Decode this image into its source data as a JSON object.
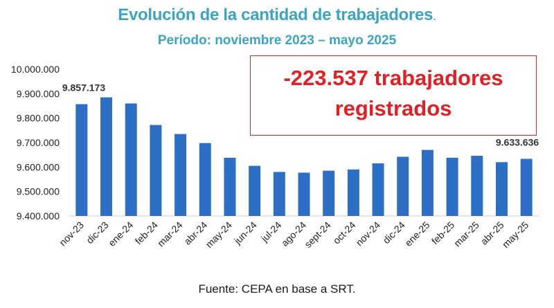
{
  "chart_data": {
    "type": "bar",
    "title": "Evolución de la cantidad de trabajadores",
    "title_suffix": ".",
    "subtitle": "Período: noviembre 2023 – mayo 2025",
    "categories": [
      "nov-23",
      "dic-23",
      "ene-24",
      "feb-24",
      "mar-24",
      "abr-24",
      "may-24",
      "jun-24",
      "jul-24",
      "ago-24",
      "sept-24",
      "oct-24",
      "nov-24",
      "dic-24",
      "ene-25",
      "feb-25",
      "mar-25",
      "abr-25",
      "may-25"
    ],
    "values": [
      9857173,
      9885000,
      9860000,
      9772000,
      9735000,
      9698000,
      9638000,
      9605000,
      9580000,
      9577000,
      9585000,
      9590000,
      9615000,
      9642000,
      9670000,
      9638000,
      9646000,
      9620000,
      9633636
    ],
    "ylim": [
      9400000,
      10000000
    ],
    "yticks": [
      "9.400.000",
      "9.500.000",
      "9.600.000",
      "9.700.000",
      "9.800.000",
      "9.900.000",
      "10.000.000"
    ],
    "ytick_values": [
      9400000,
      9500000,
      9600000,
      9700000,
      9800000,
      9900000,
      10000000
    ],
    "data_labels": [
      {
        "index": 0,
        "text": "9.857.173"
      },
      {
        "index": 18,
        "text": "9.633.636"
      }
    ],
    "bar_color": "#2e6fc6",
    "grid": false
  },
  "callout": {
    "line1": "-223.537 trabajadores",
    "line2": "registrados",
    "color": "#e31e24"
  },
  "source": "Fuente: CEPA en base a SRT."
}
